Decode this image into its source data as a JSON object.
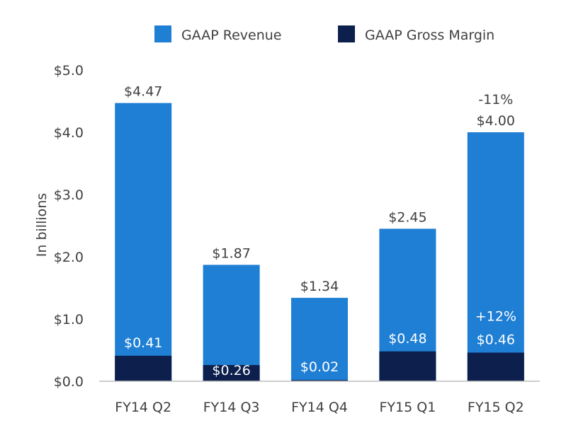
{
  "chart_data": {
    "type": "bar",
    "categories": [
      "FY14 Q2",
      "FY14 Q3",
      "FY14 Q4",
      "FY15 Q1",
      "FY15 Q2"
    ],
    "series": [
      {
        "name": "GAAP Revenue",
        "values": [
          4.47,
          1.87,
          1.34,
          2.45,
          4.0
        ],
        "labels": [
          "$4.47",
          "$1.87",
          "$1.34",
          "$2.45",
          "$4.00"
        ],
        "color": "#1f7fd4"
      },
      {
        "name": "GAAP Gross Margin",
        "values": [
          0.41,
          0.26,
          0.02,
          0.48,
          0.46
        ],
        "labels": [
          "$0.41",
          "$0.26",
          "$0.02",
          "$0.48",
          "$0.46"
        ],
        "color": "#0c1f4d"
      }
    ],
    "annotations": [
      {
        "category": "FY15 Q2",
        "series": "GAAP Revenue",
        "text": "-11%"
      },
      {
        "category": "FY15 Q2",
        "series": "GAAP Gross Margin",
        "text": "+12%"
      }
    ],
    "title": "",
    "xlabel": "",
    "ylabel": "In billions",
    "ylim": [
      0,
      5.0
    ],
    "yticks": [
      "$0.0",
      "$1.0",
      "$2.0",
      "$3.0",
      "$4.0",
      "$5.0"
    ],
    "grid": false,
    "legend": "top"
  }
}
